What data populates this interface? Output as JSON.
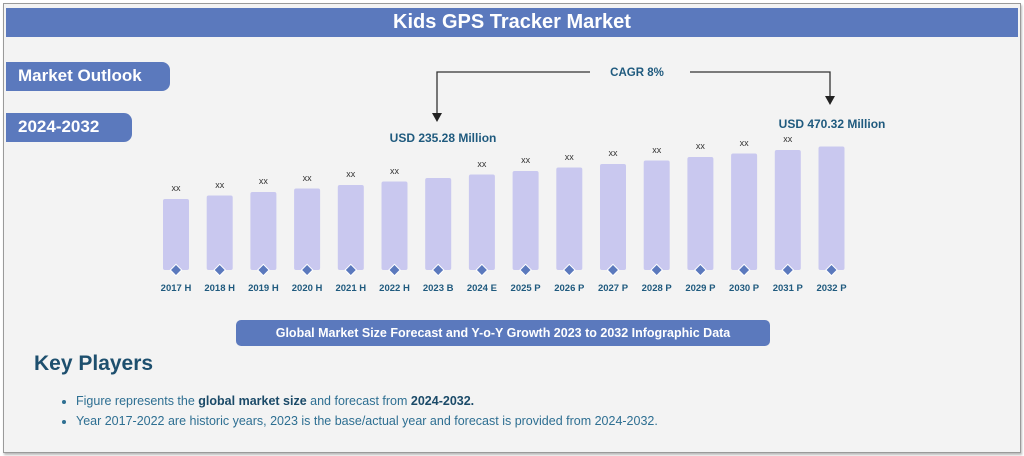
{
  "title": "Kids GPS Tracker Market",
  "market_outlook": "Market Outlook",
  "period": "2024-2032",
  "cagr": "CAGR 8%",
  "caption": "Global Market Size Forecast and Y-o-Y Growth 2023 to 2032 Infographic Data",
  "key_players": "Key Players",
  "bullets": [
    {
      "pre": "Figure represents the ",
      "b1": "global market size",
      "mid": " and forecast from ",
      "b2": "2024-2032."
    },
    {
      "pre": "Year 2017-2022 are historic years, 2023 is the base/actual year and forecast is provided from 2024-2032."
    }
  ],
  "colors": {
    "banner": "#5b79bd",
    "bar": "#c9c8ef",
    "marker": "#5b79bd",
    "label": "#1f5a7e"
  },
  "chart_data": {
    "type": "bar",
    "categories": [
      "2017 H",
      "2018 H",
      "2019 H",
      "2020 H",
      "2021 H",
      "2022 H",
      "2023 B",
      "2024 E",
      "2025 P",
      "2026 P",
      "2027 P",
      "2028 P",
      "2029 P",
      "2030 P",
      "2031 P",
      "2032 P"
    ],
    "values": [
      null,
      null,
      null,
      null,
      null,
      null,
      235.28,
      null,
      null,
      null,
      null,
      null,
      null,
      null,
      null,
      470.32
    ],
    "data_labels": [
      "xx",
      "xx",
      "xx",
      "xx",
      "xx",
      "xx",
      "",
      "xx",
      "xx",
      "xx",
      "xx",
      "xx",
      "xx",
      "xx",
      "xx",
      ""
    ],
    "annotations": [
      {
        "category": "2023 B",
        "text": "USD 235.28 Million"
      },
      {
        "category": "2032 P",
        "text": "USD 470.32 Million"
      }
    ],
    "unit": "USD Million"
  }
}
